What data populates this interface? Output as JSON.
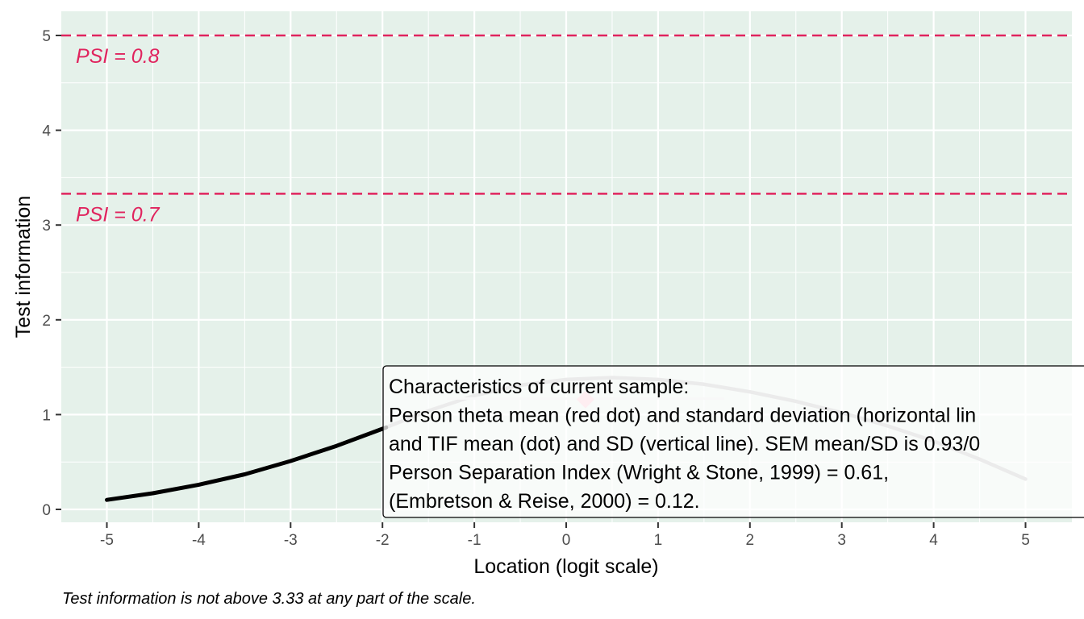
{
  "chart_data": {
    "type": "line",
    "title": "",
    "xlabel": "Location (logit scale)",
    "ylabel": "Test information",
    "xlim": [
      -5.5,
      5.5
    ],
    "ylim": [
      -0.15,
      5.15
    ],
    "x_ticks": [
      -5,
      -4,
      -3,
      -2,
      -1,
      0,
      1,
      2,
      3,
      4,
      5
    ],
    "y_ticks": [
      0,
      1,
      2,
      3,
      4,
      5
    ],
    "grid": true,
    "background_color": "#E5F1EA",
    "series": [
      {
        "color_sample_range": "#000000",
        "color_outside_range": "#B8B8B8",
        "sample_range": [
          -5,
          -1.96
        ],
        "x": [
          -5,
          -4.5,
          -4,
          -3.5,
          -3,
          -2.5,
          -2,
          -1.5,
          -1,
          -0.5,
          0,
          0.5,
          1,
          1.5,
          2,
          2.5,
          3,
          3.5,
          4,
          4.5,
          5
        ],
        "y": [
          0.1,
          0.17,
          0.26,
          0.37,
          0.51,
          0.67,
          0.85,
          1.04,
          1.2,
          1.31,
          1.37,
          1.39,
          1.37,
          1.32,
          1.24,
          1.14,
          1.02,
          0.88,
          0.72,
          0.53,
          0.32
        ]
      }
    ],
    "reference_lines": [
      {
        "y": 5.0,
        "label": "PSI = 0.8",
        "color": "#E0245E"
      },
      {
        "y": 3.33,
        "label": "PSI = 0.7",
        "color": "#E0245E"
      }
    ],
    "points": [
      {
        "x": 0.21,
        "y": 1.16,
        "color": "#F9C0CB",
        "shape": "diamond"
      }
    ],
    "horizontal_ranges": [
      {
        "x_from": -1.3,
        "x_to": 1.72,
        "y": 1.17,
        "color": "#E4E4E4"
      }
    ],
    "annotation": {
      "lines": [
        "Characteristics of current sample:",
        "Person theta mean (red dot) and standard deviation (horizontal lin",
        "and TIF mean (dot) and SD (vertical line). SEM mean/SD is 0.93/0",
        "Person Separation Index (Wright & Stone, 1999) = 0.61,",
        "(Embretson & Reise, 2000) = 0.12."
      ]
    },
    "caption": "Test information is not above 3.33 at any part of the scale."
  }
}
